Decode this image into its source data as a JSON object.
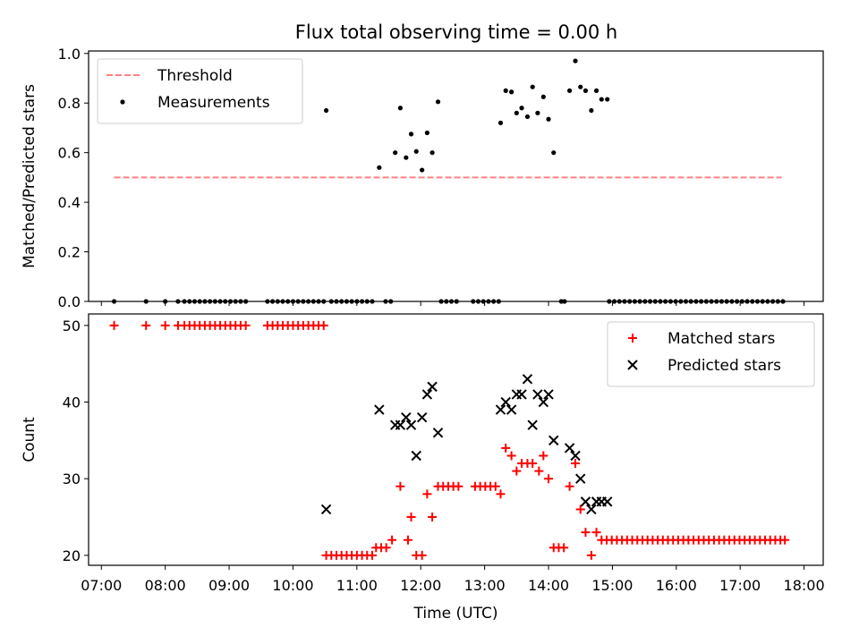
{
  "title": "Flux total observing time = 0.00 h",
  "chart_data": [
    {
      "type": "scatter",
      "ylabel": "Matched/Predicted stars",
      "xlabel": "",
      "xlim": [
        6.8,
        18.3
      ],
      "ylim": [
        0,
        1.01
      ],
      "yticks": [
        0.0,
        0.2,
        0.4,
        0.6,
        0.8,
        1.0
      ],
      "ytick_labels": [
        "0.0",
        "0.2",
        "0.4",
        "0.6",
        "0.8",
        "1.0"
      ],
      "legend_position": "top-left",
      "threshold": {
        "name": "Threshold",
        "value": 0.5,
        "x_range": [
          7.2,
          17.65
        ],
        "color": "#ff8080"
      },
      "series": [
        {
          "name": "Measurements",
          "marker": "dot",
          "color": "#000000",
          "points": [
            [
              7.2,
              0
            ],
            [
              7.7,
              0
            ],
            [
              8.0,
              0
            ],
            [
              8.2,
              0
            ],
            [
              8.3,
              0
            ],
            [
              8.38,
              0
            ],
            [
              8.46,
              0
            ],
            [
              8.54,
              0
            ],
            [
              8.62,
              0
            ],
            [
              8.7,
              0
            ],
            [
              8.78,
              0
            ],
            [
              8.86,
              0
            ],
            [
              8.94,
              0
            ],
            [
              9.02,
              0
            ],
            [
              9.1,
              0
            ],
            [
              9.18,
              0
            ],
            [
              9.26,
              0
            ],
            [
              9.6,
              0
            ],
            [
              9.68,
              0
            ],
            [
              9.76,
              0
            ],
            [
              9.84,
              0
            ],
            [
              9.92,
              0
            ],
            [
              10.0,
              0
            ],
            [
              10.08,
              0
            ],
            [
              10.16,
              0
            ],
            [
              10.24,
              0
            ],
            [
              10.32,
              0
            ],
            [
              10.4,
              0
            ],
            [
              10.48,
              0
            ],
            [
              10.6,
              0
            ],
            [
              10.68,
              0
            ],
            [
              10.76,
              0
            ],
            [
              10.84,
              0
            ],
            [
              10.92,
              0
            ],
            [
              11.0,
              0
            ],
            [
              11.08,
              0
            ],
            [
              11.16,
              0
            ],
            [
              11.24,
              0
            ],
            [
              11.45,
              0
            ],
            [
              11.53,
              0
            ],
            [
              12.32,
              0
            ],
            [
              12.4,
              0
            ],
            [
              12.48,
              0
            ],
            [
              12.56,
              0
            ],
            [
              12.82,
              0
            ],
            [
              12.9,
              0
            ],
            [
              12.98,
              0
            ],
            [
              13.06,
              0
            ],
            [
              13.14,
              0
            ],
            [
              13.22,
              0
            ],
            [
              14.2,
              0
            ],
            [
              14.25,
              0
            ],
            [
              14.95,
              0
            ],
            [
              15.03,
              0
            ],
            [
              15.11,
              0
            ],
            [
              15.19,
              0
            ],
            [
              15.27,
              0
            ],
            [
              15.35,
              0
            ],
            [
              15.43,
              0
            ],
            [
              15.51,
              0
            ],
            [
              15.59,
              0
            ],
            [
              15.67,
              0
            ],
            [
              15.75,
              0
            ],
            [
              15.83,
              0
            ],
            [
              15.91,
              0
            ],
            [
              15.99,
              0
            ],
            [
              16.07,
              0
            ],
            [
              16.15,
              0
            ],
            [
              16.23,
              0
            ],
            [
              16.31,
              0
            ],
            [
              16.39,
              0
            ],
            [
              16.47,
              0
            ],
            [
              16.55,
              0
            ],
            [
              16.63,
              0
            ],
            [
              16.71,
              0
            ],
            [
              16.79,
              0
            ],
            [
              16.87,
              0
            ],
            [
              16.95,
              0
            ],
            [
              17.03,
              0
            ],
            [
              17.11,
              0
            ],
            [
              17.19,
              0
            ],
            [
              17.27,
              0
            ],
            [
              17.35,
              0
            ],
            [
              17.43,
              0
            ],
            [
              17.51,
              0
            ],
            [
              17.59,
              0
            ],
            [
              17.67,
              0
            ],
            [
              10.52,
              0.77
            ],
            [
              11.35,
              0.54
            ],
            [
              11.6,
              0.6
            ],
            [
              11.68,
              0.78
            ],
            [
              11.77,
              0.58
            ],
            [
              11.85,
              0.675
            ],
            [
              11.93,
              0.605
            ],
            [
              12.02,
              0.53
            ],
            [
              12.1,
              0.68
            ],
            [
              12.18,
              0.6
            ],
            [
              12.27,
              0.805
            ],
            [
              13.25,
              0.72
            ],
            [
              13.33,
              0.85
            ],
            [
              13.42,
              0.845
            ],
            [
              13.5,
              0.76
            ],
            [
              13.58,
              0.78
            ],
            [
              13.67,
              0.745
            ],
            [
              13.75,
              0.865
            ],
            [
              13.83,
              0.76
            ],
            [
              13.92,
              0.825
            ],
            [
              14.0,
              0.735
            ],
            [
              14.08,
              0.6
            ],
            [
              14.33,
              0.85
            ],
            [
              14.42,
              0.97
            ],
            [
              14.5,
              0.865
            ],
            [
              14.58,
              0.85
            ],
            [
              14.67,
              0.77
            ],
            [
              14.75,
              0.85
            ],
            [
              14.83,
              0.815
            ],
            [
              14.92,
              0.815
            ]
          ]
        }
      ]
    },
    {
      "type": "scatter",
      "ylabel": "Count",
      "xlabel": "Time (UTC)",
      "xlim": [
        6.8,
        18.3
      ],
      "ylim": [
        18.7,
        51.5
      ],
      "yticks": [
        20,
        30,
        40,
        50
      ],
      "ytick_labels": [
        "20",
        "30",
        "40",
        "50"
      ],
      "xticks": [
        7,
        8,
        9,
        10,
        11,
        12,
        13,
        14,
        15,
        16,
        17,
        18
      ],
      "xtick_labels": [
        "07:00",
        "08:00",
        "09:00",
        "10:00",
        "11:00",
        "12:00",
        "13:00",
        "14:00",
        "15:00",
        "16:00",
        "17:00",
        "18:00"
      ],
      "legend_position": "top-right",
      "series": [
        {
          "name": "Matched stars",
          "marker": "plus",
          "color": "#ff0000",
          "points": [
            [
              7.2,
              50
            ],
            [
              7.7,
              50
            ],
            [
              8.0,
              50
            ],
            [
              8.2,
              50
            ],
            [
              8.3,
              50
            ],
            [
              8.38,
              50
            ],
            [
              8.46,
              50
            ],
            [
              8.54,
              50
            ],
            [
              8.62,
              50
            ],
            [
              8.7,
              50
            ],
            [
              8.78,
              50
            ],
            [
              8.86,
              50
            ],
            [
              8.94,
              50
            ],
            [
              9.02,
              50
            ],
            [
              9.1,
              50
            ],
            [
              9.18,
              50
            ],
            [
              9.26,
              50
            ],
            [
              9.6,
              50
            ],
            [
              9.68,
              50
            ],
            [
              9.76,
              50
            ],
            [
              9.84,
              50
            ],
            [
              9.92,
              50
            ],
            [
              10.0,
              50
            ],
            [
              10.08,
              50
            ],
            [
              10.16,
              50
            ],
            [
              10.24,
              50
            ],
            [
              10.32,
              50
            ],
            [
              10.4,
              50
            ],
            [
              10.48,
              50
            ],
            [
              10.52,
              20
            ],
            [
              10.6,
              20
            ],
            [
              10.68,
              20
            ],
            [
              10.76,
              20
            ],
            [
              10.84,
              20
            ],
            [
              10.92,
              20
            ],
            [
              11.0,
              20
            ],
            [
              11.08,
              20
            ],
            [
              11.16,
              20
            ],
            [
              11.24,
              20
            ],
            [
              11.3,
              21
            ],
            [
              11.38,
              21
            ],
            [
              11.46,
              21
            ],
            [
              11.55,
              22
            ],
            [
              11.68,
              29
            ],
            [
              11.8,
              22
            ],
            [
              11.85,
              25
            ],
            [
              11.93,
              20
            ],
            [
              12.02,
              20
            ],
            [
              12.1,
              28
            ],
            [
              12.18,
              25
            ],
            [
              12.27,
              29
            ],
            [
              12.35,
              29
            ],
            [
              12.43,
              29
            ],
            [
              12.51,
              29
            ],
            [
              12.59,
              29
            ],
            [
              12.85,
              29
            ],
            [
              12.93,
              29
            ],
            [
              13.01,
              29
            ],
            [
              13.09,
              29
            ],
            [
              13.17,
              29
            ],
            [
              13.25,
              28
            ],
            [
              13.33,
              34
            ],
            [
              13.42,
              33
            ],
            [
              13.5,
              31
            ],
            [
              13.58,
              32
            ],
            [
              13.67,
              32
            ],
            [
              13.75,
              32
            ],
            [
              13.85,
              31
            ],
            [
              13.92,
              33
            ],
            [
              14.0,
              30
            ],
            [
              14.08,
              21
            ],
            [
              14.16,
              21
            ],
            [
              14.24,
              21
            ],
            [
              14.33,
              29
            ],
            [
              14.42,
              32
            ],
            [
              14.5,
              26
            ],
            [
              14.58,
              23
            ],
            [
              14.67,
              20
            ],
            [
              14.75,
              23
            ],
            [
              14.83,
              22
            ],
            [
              14.91,
              22
            ],
            [
              14.99,
              22
            ],
            [
              15.07,
              22
            ],
            [
              15.15,
              22
            ],
            [
              15.23,
              22
            ],
            [
              15.31,
              22
            ],
            [
              15.39,
              22
            ],
            [
              15.47,
              22
            ],
            [
              15.55,
              22
            ],
            [
              15.63,
              22
            ],
            [
              15.71,
              22
            ],
            [
              15.79,
              22
            ],
            [
              15.87,
              22
            ],
            [
              15.95,
              22
            ],
            [
              16.03,
              22
            ],
            [
              16.11,
              22
            ],
            [
              16.19,
              22
            ],
            [
              16.27,
              22
            ],
            [
              16.35,
              22
            ],
            [
              16.43,
              22
            ],
            [
              16.51,
              22
            ],
            [
              16.59,
              22
            ],
            [
              16.67,
              22
            ],
            [
              16.75,
              22
            ],
            [
              16.83,
              22
            ],
            [
              16.91,
              22
            ],
            [
              16.99,
              22
            ],
            [
              17.07,
              22
            ],
            [
              17.15,
              22
            ],
            [
              17.23,
              22
            ],
            [
              17.31,
              22
            ],
            [
              17.39,
              22
            ],
            [
              17.47,
              22
            ],
            [
              17.55,
              22
            ],
            [
              17.63,
              22
            ],
            [
              17.7,
              22
            ]
          ]
        },
        {
          "name": "Predicted stars",
          "marker": "x",
          "color": "#000000",
          "points": [
            [
              10.52,
              26
            ],
            [
              11.35,
              39
            ],
            [
              11.6,
              37
            ],
            [
              11.68,
              37
            ],
            [
              11.77,
              38
            ],
            [
              11.85,
              37
            ],
            [
              11.93,
              33
            ],
            [
              12.02,
              38
            ],
            [
              12.1,
              41
            ],
            [
              12.18,
              42
            ],
            [
              12.27,
              36
            ],
            [
              13.25,
              39
            ],
            [
              13.33,
              40
            ],
            [
              13.42,
              39
            ],
            [
              13.5,
              41
            ],
            [
              13.58,
              41
            ],
            [
              13.67,
              43
            ],
            [
              13.75,
              37
            ],
            [
              13.83,
              41
            ],
            [
              13.92,
              40
            ],
            [
              14.0,
              41
            ],
            [
              14.08,
              35
            ],
            [
              14.33,
              34
            ],
            [
              14.42,
              33
            ],
            [
              14.5,
              30
            ],
            [
              14.58,
              27
            ],
            [
              14.67,
              26
            ],
            [
              14.75,
              27
            ],
            [
              14.83,
              27
            ],
            [
              14.92,
              27
            ]
          ]
        }
      ]
    }
  ]
}
